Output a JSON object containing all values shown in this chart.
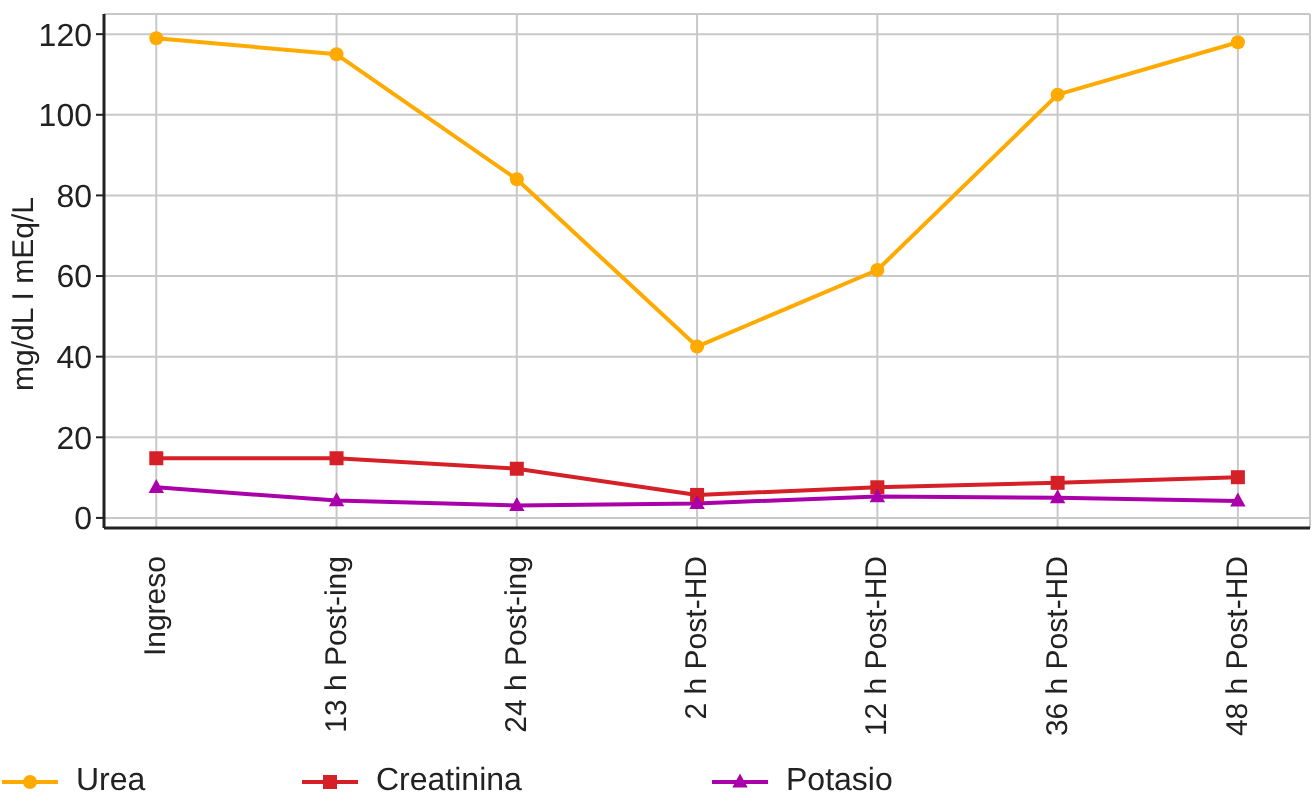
{
  "chart_data": {
    "type": "line",
    "ylabel": "mg/dL I mEq/L",
    "categories": [
      "Ingreso",
      "13 h Post-ing",
      "24 h Post-ing",
      "2 h Post-HD",
      "12 h Post-HD",
      "36 h Post-HD",
      "48 h Post-HD"
    ],
    "series": [
      {
        "name": "Urea",
        "color": "#ffaa00",
        "marker": "circle",
        "values": [
          119,
          115,
          84,
          42.5,
          61.5,
          105,
          118
        ]
      },
      {
        "name": "Creatinina",
        "color": "#d62027",
        "marker": "square",
        "values": [
          14.8,
          14.8,
          12.2,
          5.7,
          7.6,
          8.7,
          10.1
        ]
      },
      {
        "name": "Potasio",
        "color": "#aa00aa",
        "marker": "triangle",
        "values": [
          7.6,
          4.3,
          3.1,
          3.6,
          5.3,
          5,
          4.2
        ]
      }
    ],
    "ylim": [
      -2.5,
      125
    ],
    "yticks": [
      0,
      20,
      40,
      60,
      80,
      100,
      120
    ],
    "grid": true,
    "legend": "bottom"
  }
}
